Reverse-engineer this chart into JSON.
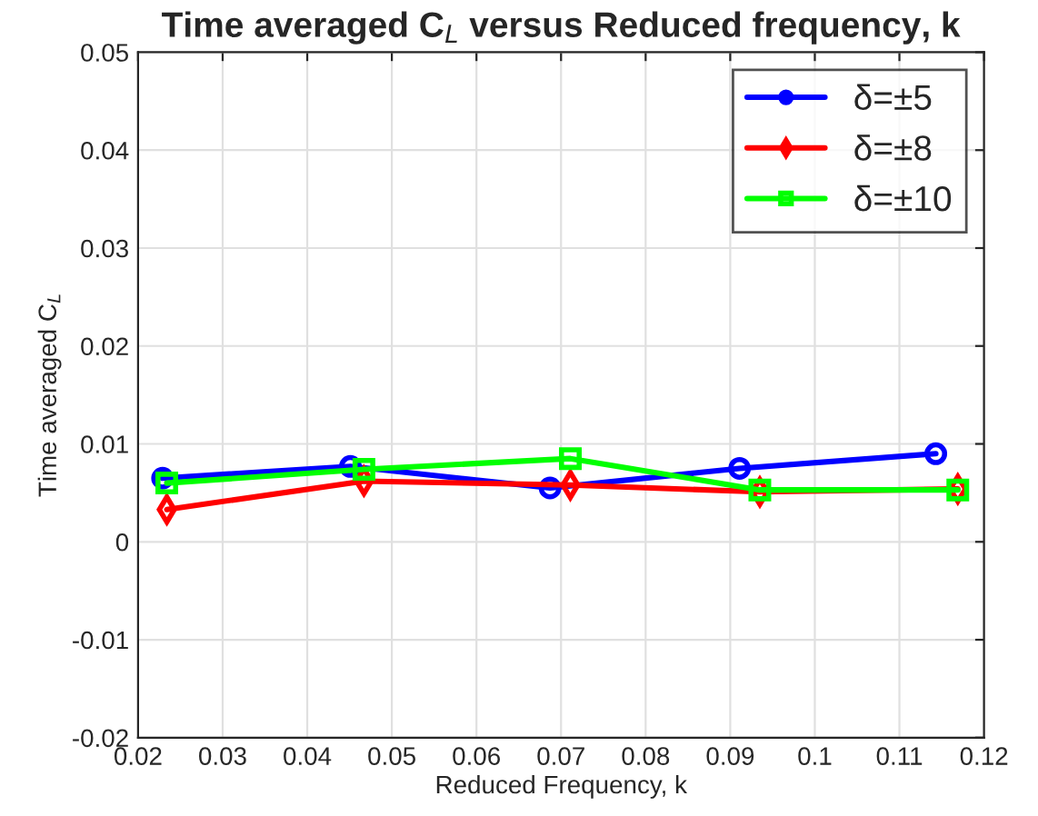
{
  "chart_data": {
    "type": "line",
    "title": "Time averaged C$_{L}$ versus Reduced frequency, k",
    "xlabel": "Reduced Frequency, k",
    "ylabel": "Time averaged C$_{L}$",
    "series": [
      {
        "name": "δ=±5",
        "color": "#0000ff",
        "marker": "circle",
        "x": [
          0.0229,
          0.0451,
          0.0687,
          0.0911,
          0.1143
        ],
        "values": [
          0.0065,
          0.0077,
          0.0055,
          0.0075,
          0.009
        ]
      },
      {
        "name": "δ=±8",
        "color": "#ff0000",
        "marker": "diamond",
        "x": [
          0.0234,
          0.0467,
          0.0711,
          0.0935,
          0.1169
        ],
        "values": [
          0.0033,
          0.0062,
          0.0058,
          0.0051,
          0.0054
        ]
      },
      {
        "name": "δ=±10",
        "color": "#00ff00",
        "marker": "square",
        "x": [
          0.0234,
          0.0467,
          0.0711,
          0.0935,
          0.1169
        ],
        "values": [
          0.006,
          0.0074,
          0.0085,
          0.0053,
          0.0053
        ]
      }
    ],
    "xlim": [
      0.02,
      0.12
    ],
    "xticks": [
      0.02,
      0.03,
      0.04,
      0.05,
      0.06,
      0.07,
      0.08,
      0.09,
      0.1,
      0.11,
      0.12
    ],
    "ylim": [
      -0.02,
      0.05
    ],
    "yticks": [
      -0.02,
      -0.01,
      0,
      0.01,
      0.02,
      0.03,
      0.04,
      0.05
    ],
    "grid": true,
    "legend": "top right",
    "line_style": "solid"
  }
}
